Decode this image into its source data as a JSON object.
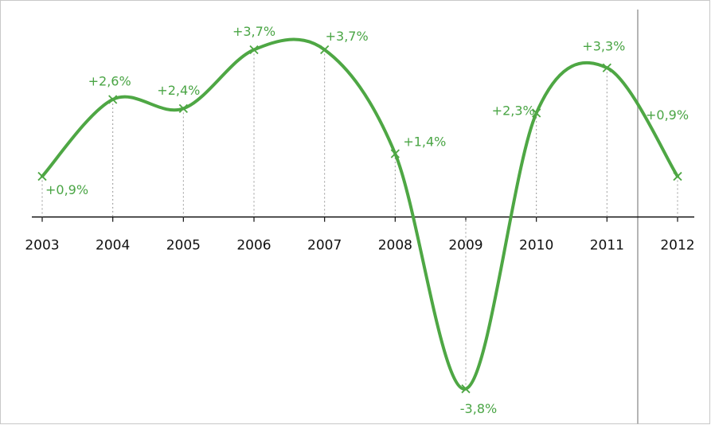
{
  "chart_data": {
    "type": "line",
    "categories": [
      "2003",
      "2004",
      "2005",
      "2006",
      "2007",
      "2008",
      "2009",
      "2010",
      "2011",
      "2012"
    ],
    "series": [
      {
        "color": "#4ea744",
        "values": [
          0.9,
          2.6,
          2.4,
          3.7,
          3.7,
          1.4,
          -3.8,
          2.3,
          3.3,
          0.9
        ],
        "value_labels": [
          "+0,9%",
          "+2,6%",
          "+2,4%",
          "+3,7%",
          "+3,7%",
          "+1,4%",
          "-3,8%",
          "+2,3%",
          "+3,3%",
          "+0,9%"
        ]
      }
    ],
    "ylim": [
      -4.6,
      4.8
    ]
  }
}
